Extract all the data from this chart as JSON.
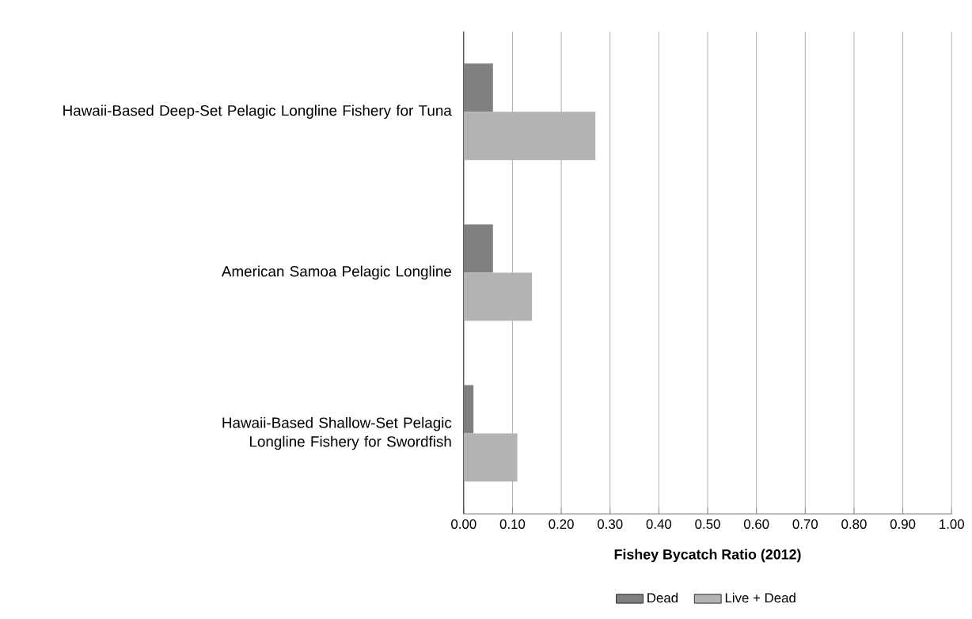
{
  "chart_data": {
    "type": "bar",
    "orientation": "horizontal",
    "xlabel": "Fishey Bycatch Ratio (2012)",
    "categories": [
      "Hawaii-Based Deep-Set Pelagic Longline Fishery for Tuna",
      "American Samoa Pelagic Longline",
      "Hawaii-Based Shallow-Set Pelagic Longline Fishery for Swordfish"
    ],
    "series": [
      {
        "name": "Dead",
        "color": "#808080",
        "values": [
          0.06,
          0.06,
          0.02
        ]
      },
      {
        "name": "Live +  Dead",
        "color": "#b3b3b3",
        "values": [
          0.27,
          0.14,
          0.11
        ]
      }
    ],
    "xlim": [
      0,
      1
    ],
    "xticks": [
      {
        "value": 0,
        "label": "0.00"
      },
      {
        "value": 0.1,
        "label": "0.10"
      },
      {
        "value": 0.2,
        "label": "0.20"
      },
      {
        "value": 0.3,
        "label": "0.30"
      },
      {
        "value": 0.4,
        "label": "0.40"
      },
      {
        "value": 0.5,
        "label": "0.50"
      },
      {
        "value": 0.6,
        "label": "0.60"
      },
      {
        "value": 0.7,
        "label": "0.70"
      },
      {
        "value": 0.8,
        "label": "0.80"
      },
      {
        "value": 0.9,
        "label": "0.90"
      },
      {
        "value": 1,
        "label": "1.00"
      }
    ],
    "grid": "x",
    "legend": "bottom"
  }
}
